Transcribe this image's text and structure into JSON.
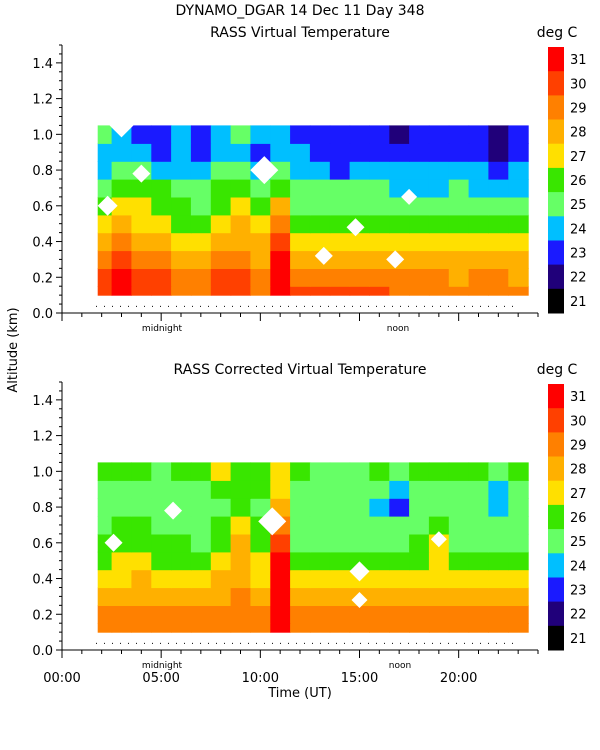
{
  "header": {
    "title": "DYNAMO_DGAR  14 Dec 11 Day 348"
  },
  "shared": {
    "ylabel": "Altitude (km)",
    "xlabel": "Time (UT)",
    "x_tick_labels": [
      "00:00",
      "05:00",
      "10:00",
      "15:00",
      "20:00"
    ],
    "y_tick_labels": [
      "0.0",
      "0.2",
      "0.4",
      "0.6",
      "0.8",
      "1.0",
      "1.2",
      "1.4"
    ],
    "x_annotations": [
      "midnight",
      "noon"
    ],
    "colorbar_unit": "deg C",
    "colorbar_labels": [
      "31",
      "30",
      "29",
      "28",
      "27",
      "26",
      "25",
      "24",
      "23",
      "22",
      "21"
    ],
    "colors": {
      "red": "#ff0000",
      "orange_red": "#ff4000",
      "orange": "#ff8000",
      "orange_yellow": "#ffb000",
      "yellow": "#ffe000",
      "green": "#39e600",
      "light_green": "#66ff66",
      "cyan": "#00bfff",
      "blue": "#1a1aff",
      "dark_blue": "#20007a",
      "black": "#000000"
    }
  },
  "chart_data": [
    {
      "type": "heatmap",
      "title": "RASS Virtual Temperature",
      "xlabel": "Time (UT)",
      "ylabel": "Altitude (km)",
      "xlim": [
        0,
        24
      ],
      "ylim": [
        0,
        1.5
      ],
      "zlim": [
        21,
        32
      ],
      "colorbar_label": "deg C",
      "colorbar_ticks": [
        21,
        22,
        23,
        24,
        25,
        26,
        27,
        28,
        29,
        30,
        31
      ],
      "x_tick_labels": [
        "00:00",
        "05:00",
        "10:00",
        "15:00",
        "20:00"
      ],
      "y_tick_labels": [
        "0.0",
        "0.2",
        "0.4",
        "0.6",
        "0.8",
        "1.0",
        "1.2",
        "1.4"
      ],
      "annotations": [
        "midnight",
        "noon"
      ],
      "times_hr": [
        2,
        3,
        4,
        5,
        6,
        7,
        8,
        9,
        10,
        11,
        12,
        13,
        14,
        15,
        16,
        17,
        18,
        19,
        20,
        21,
        22,
        23
      ],
      "altitudes_km": [
        0.1,
        0.2,
        0.3,
        0.4,
        0.5,
        0.6,
        0.7,
        0.8,
        0.9,
        1.0
      ],
      "temperature_c": [
        [
          30,
          31,
          30,
          30,
          29,
          29,
          30,
          30,
          29,
          31,
          30,
          30,
          30,
          30,
          30,
          29,
          29,
          29,
          29,
          29,
          29,
          29
        ],
        [
          30,
          31,
          30,
          30,
          29,
          29,
          30,
          30,
          29,
          31,
          29,
          29,
          29,
          29,
          29,
          29,
          29,
          29,
          28,
          29,
          29,
          28
        ],
        [
          29,
          30,
          29,
          29,
          28,
          28,
          29,
          29,
          28,
          31,
          28,
          28,
          28,
          28,
          28,
          28,
          28,
          28,
          28,
          28,
          28,
          28
        ],
        [
          28,
          29,
          28,
          28,
          27,
          27,
          28,
          28,
          28,
          30,
          27,
          27,
          27,
          27,
          27,
          27,
          27,
          27,
          27,
          27,
          27,
          27
        ],
        [
          27,
          28,
          27,
          27,
          26,
          26,
          27,
          28,
          27,
          29,
          26,
          26,
          26,
          26,
          26,
          26,
          26,
          26,
          26,
          26,
          26,
          26
        ],
        [
          26,
          27,
          27,
          26,
          26,
          25,
          26,
          27,
          26,
          28,
          25,
          25,
          25,
          25,
          25,
          25,
          25,
          25,
          25,
          25,
          25,
          25
        ],
        [
          25,
          26,
          26,
          26,
          25,
          25,
          26,
          26,
          25,
          26,
          25,
          25,
          25,
          25,
          25,
          24,
          24,
          24,
          25,
          24,
          24,
          24
        ],
        [
          24,
          25,
          25,
          24,
          24,
          24,
          25,
          25,
          24,
          25,
          24,
          24,
          23,
          24,
          24,
          24,
          24,
          24,
          24,
          24,
          23,
          24
        ],
        [
          24,
          24,
          24,
          23,
          24,
          23,
          24,
          24,
          23,
          24,
          24,
          23,
          23,
          23,
          23,
          23,
          23,
          23,
          23,
          23,
          22,
          23
        ],
        [
          25,
          24,
          23,
          23,
          24,
          23,
          24,
          25,
          24,
          24,
          23,
          23,
          23,
          23,
          23,
          22,
          23,
          23,
          23,
          23,
          22,
          23
        ]
      ]
    },
    {
      "type": "heatmap",
      "title": "RASS Corrected Virtual Temperature",
      "xlabel": "Time (UT)",
      "ylabel": "Altitude (km)",
      "xlim": [
        0,
        24
      ],
      "ylim": [
        0,
        1.5
      ],
      "zlim": [
        21,
        32
      ],
      "colorbar_label": "deg C",
      "colorbar_ticks": [
        21,
        22,
        23,
        24,
        25,
        26,
        27,
        28,
        29,
        30,
        31
      ],
      "x_tick_labels": [
        "00:00",
        "05:00",
        "10:00",
        "15:00",
        "20:00"
      ],
      "y_tick_labels": [
        "0.0",
        "0.2",
        "0.4",
        "0.6",
        "0.8",
        "1.0",
        "1.2",
        "1.4"
      ],
      "annotations": [
        "midnight",
        "noon"
      ],
      "times_hr": [
        2,
        3,
        4,
        5,
        6,
        7,
        8,
        9,
        10,
        11,
        12,
        13,
        14,
        15,
        16,
        17,
        18,
        19,
        20,
        21,
        22,
        23
      ],
      "altitudes_km": [
        0.1,
        0.2,
        0.3,
        0.4,
        0.5,
        0.6,
        0.7,
        0.8,
        0.9,
        1.0
      ],
      "temperature_c": [
        [
          29,
          29,
          29,
          29,
          29,
          29,
          29,
          29,
          29,
          31,
          29,
          29,
          29,
          29,
          29,
          29,
          29,
          29,
          29,
          29,
          29,
          29
        ],
        [
          29,
          29,
          29,
          29,
          29,
          29,
          29,
          29,
          29,
          31,
          29,
          29,
          29,
          29,
          29,
          29,
          29,
          29,
          29,
          29,
          29,
          29
        ],
        [
          28,
          28,
          28,
          28,
          28,
          28,
          28,
          29,
          28,
          31,
          28,
          28,
          28,
          28,
          28,
          28,
          28,
          28,
          28,
          28,
          28,
          28
        ],
        [
          27,
          27,
          28,
          27,
          27,
          27,
          28,
          28,
          27,
          31,
          27,
          27,
          27,
          27,
          27,
          27,
          27,
          27,
          27,
          27,
          27,
          27
        ],
        [
          26,
          27,
          27,
          26,
          26,
          26,
          27,
          28,
          27,
          31,
          26,
          26,
          26,
          26,
          26,
          26,
          26,
          27,
          26,
          26,
          26,
          26
        ],
        [
          26,
          26,
          26,
          26,
          26,
          25,
          26,
          28,
          26,
          30,
          25,
          25,
          25,
          25,
          25,
          25,
          26,
          27,
          25,
          25,
          25,
          25
        ],
        [
          25,
          26,
          26,
          25,
          25,
          25,
          26,
          27,
          26,
          29,
          25,
          25,
          25,
          25,
          25,
          25,
          25,
          26,
          25,
          25,
          25,
          25
        ],
        [
          25,
          25,
          25,
          25,
          25,
          25,
          25,
          26,
          25,
          28,
          25,
          25,
          25,
          25,
          24,
          23,
          25,
          25,
          25,
          25,
          24,
          25
        ],
        [
          25,
          25,
          25,
          25,
          25,
          25,
          26,
          26,
          26,
          27,
          25,
          25,
          25,
          25,
          25,
          24,
          25,
          25,
          25,
          25,
          24,
          25
        ],
        [
          26,
          26,
          26,
          25,
          26,
          26,
          27,
          26,
          26,
          27,
          26,
          25,
          25,
          25,
          26,
          25,
          26,
          26,
          26,
          26,
          25,
          26
        ]
      ]
    }
  ]
}
